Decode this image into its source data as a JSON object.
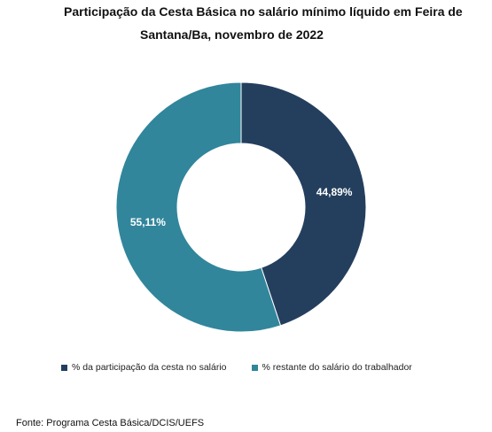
{
  "title_lines": [
    "Participação da Cesta Básica no salário mínimo líquido em Feira de",
    "Santana/Ba, novembro  de 2022"
  ],
  "chart_data": {
    "type": "pie",
    "title": "Participação da Cesta Básica no salário mínimo líquido em Feira de Santana/Ba, novembro  de 2022",
    "donut": true,
    "labels": [
      "% da participação da cesta no salário",
      "% restante do salário do trabalhador"
    ],
    "values": [
      44.89,
      55.11
    ],
    "value_labels": [
      "44,89%",
      "55,11%"
    ],
    "colors": [
      "#243f5e",
      "#31869b"
    ],
    "legend_position": "bottom"
  },
  "legend": [
    {
      "label": "% da participação da cesta no salário",
      "color": "#243f5e"
    },
    {
      "label": "% restante do salário do trabalhador",
      "color": "#31869b"
    }
  ],
  "source": "Fonte: Programa Cesta Básica/DCIS/UEFS"
}
